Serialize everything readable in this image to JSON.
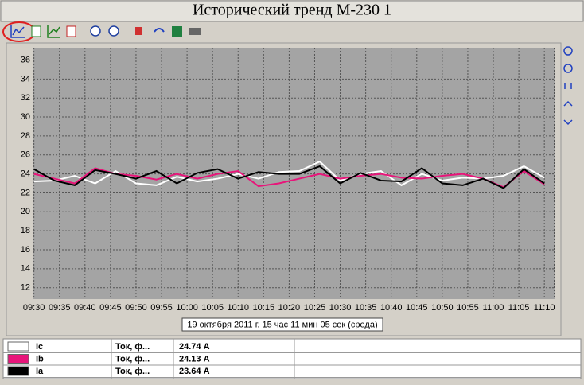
{
  "window": {
    "title": "Исторический тренд М-230 1",
    "cursor_label": "19 октября 2011 г. 15 час 11 мин 05 сек (среда)"
  },
  "chart_data": {
    "type": "line",
    "x": [
      "09:30",
      "09:34",
      "09:38",
      "09:42",
      "09:46",
      "09:50",
      "09:54",
      "09:58",
      "10:02",
      "10:06",
      "10:10",
      "10:14",
      "10:18",
      "10:22",
      "10:26",
      "10:30",
      "10:34",
      "10:38",
      "10:42",
      "10:46",
      "10:50",
      "10:54",
      "10:58",
      "11:02",
      "11:06",
      "11:10"
    ],
    "series": [
      {
        "name": "Ic",
        "color": "#ffffff",
        "values": [
          23.2,
          23.3,
          23.8,
          23.0,
          24.3,
          23.0,
          22.8,
          23.7,
          23.2,
          23.5,
          24.0,
          23.5,
          24.2,
          24.3,
          25.3,
          23.3,
          24.0,
          24.3,
          22.8,
          24.0,
          23.3,
          23.6,
          23.5,
          23.8,
          24.8,
          23.6
        ]
      },
      {
        "name": "Ib",
        "color": "#e8157a",
        "values": [
          24.0,
          23.5,
          23.0,
          24.6,
          24.0,
          23.8,
          23.4,
          24.0,
          23.5,
          24.0,
          24.3,
          22.7,
          23.0,
          23.5,
          24.0,
          23.5,
          23.8,
          24.0,
          23.6,
          23.5,
          23.8,
          24.0,
          23.5,
          22.6,
          24.3,
          22.9
        ]
      },
      {
        "name": "Ia",
        "color": "#000000",
        "values": [
          24.5,
          23.3,
          22.8,
          24.4,
          24.0,
          23.5,
          24.3,
          23.0,
          24.1,
          24.5,
          23.5,
          24.2,
          24.0,
          24.0,
          24.8,
          23.0,
          24.1,
          23.3,
          23.2,
          24.6,
          23.0,
          22.8,
          23.5,
          22.5,
          24.5,
          23.0
        ]
      }
    ],
    "xlim": [
      "09:30",
      "11:12"
    ],
    "xticks": [
      "09:30",
      "09:35",
      "09:40",
      "09:45",
      "09:50",
      "09:55",
      "10:00",
      "10:05",
      "10:10",
      "10:15",
      "10:20",
      "10:25",
      "10:30",
      "10:35",
      "10:40",
      "10:45",
      "10:50",
      "10:55",
      "11:00",
      "11:05",
      "11:10"
    ],
    "ylim": [
      10.8,
      37.3
    ],
    "yticks": [
      12,
      14,
      16,
      18,
      20,
      22,
      24,
      26,
      28,
      30,
      32,
      34,
      36
    ],
    "grid": true
  },
  "legend_rows": [
    {
      "description": "Ток, ф...",
      "value": "24.74 А"
    },
    {
      "description": "Ток, ф...",
      "value": "24.13 А"
    },
    {
      "description": "Ток, ф...",
      "value": "23.64 А"
    }
  ]
}
